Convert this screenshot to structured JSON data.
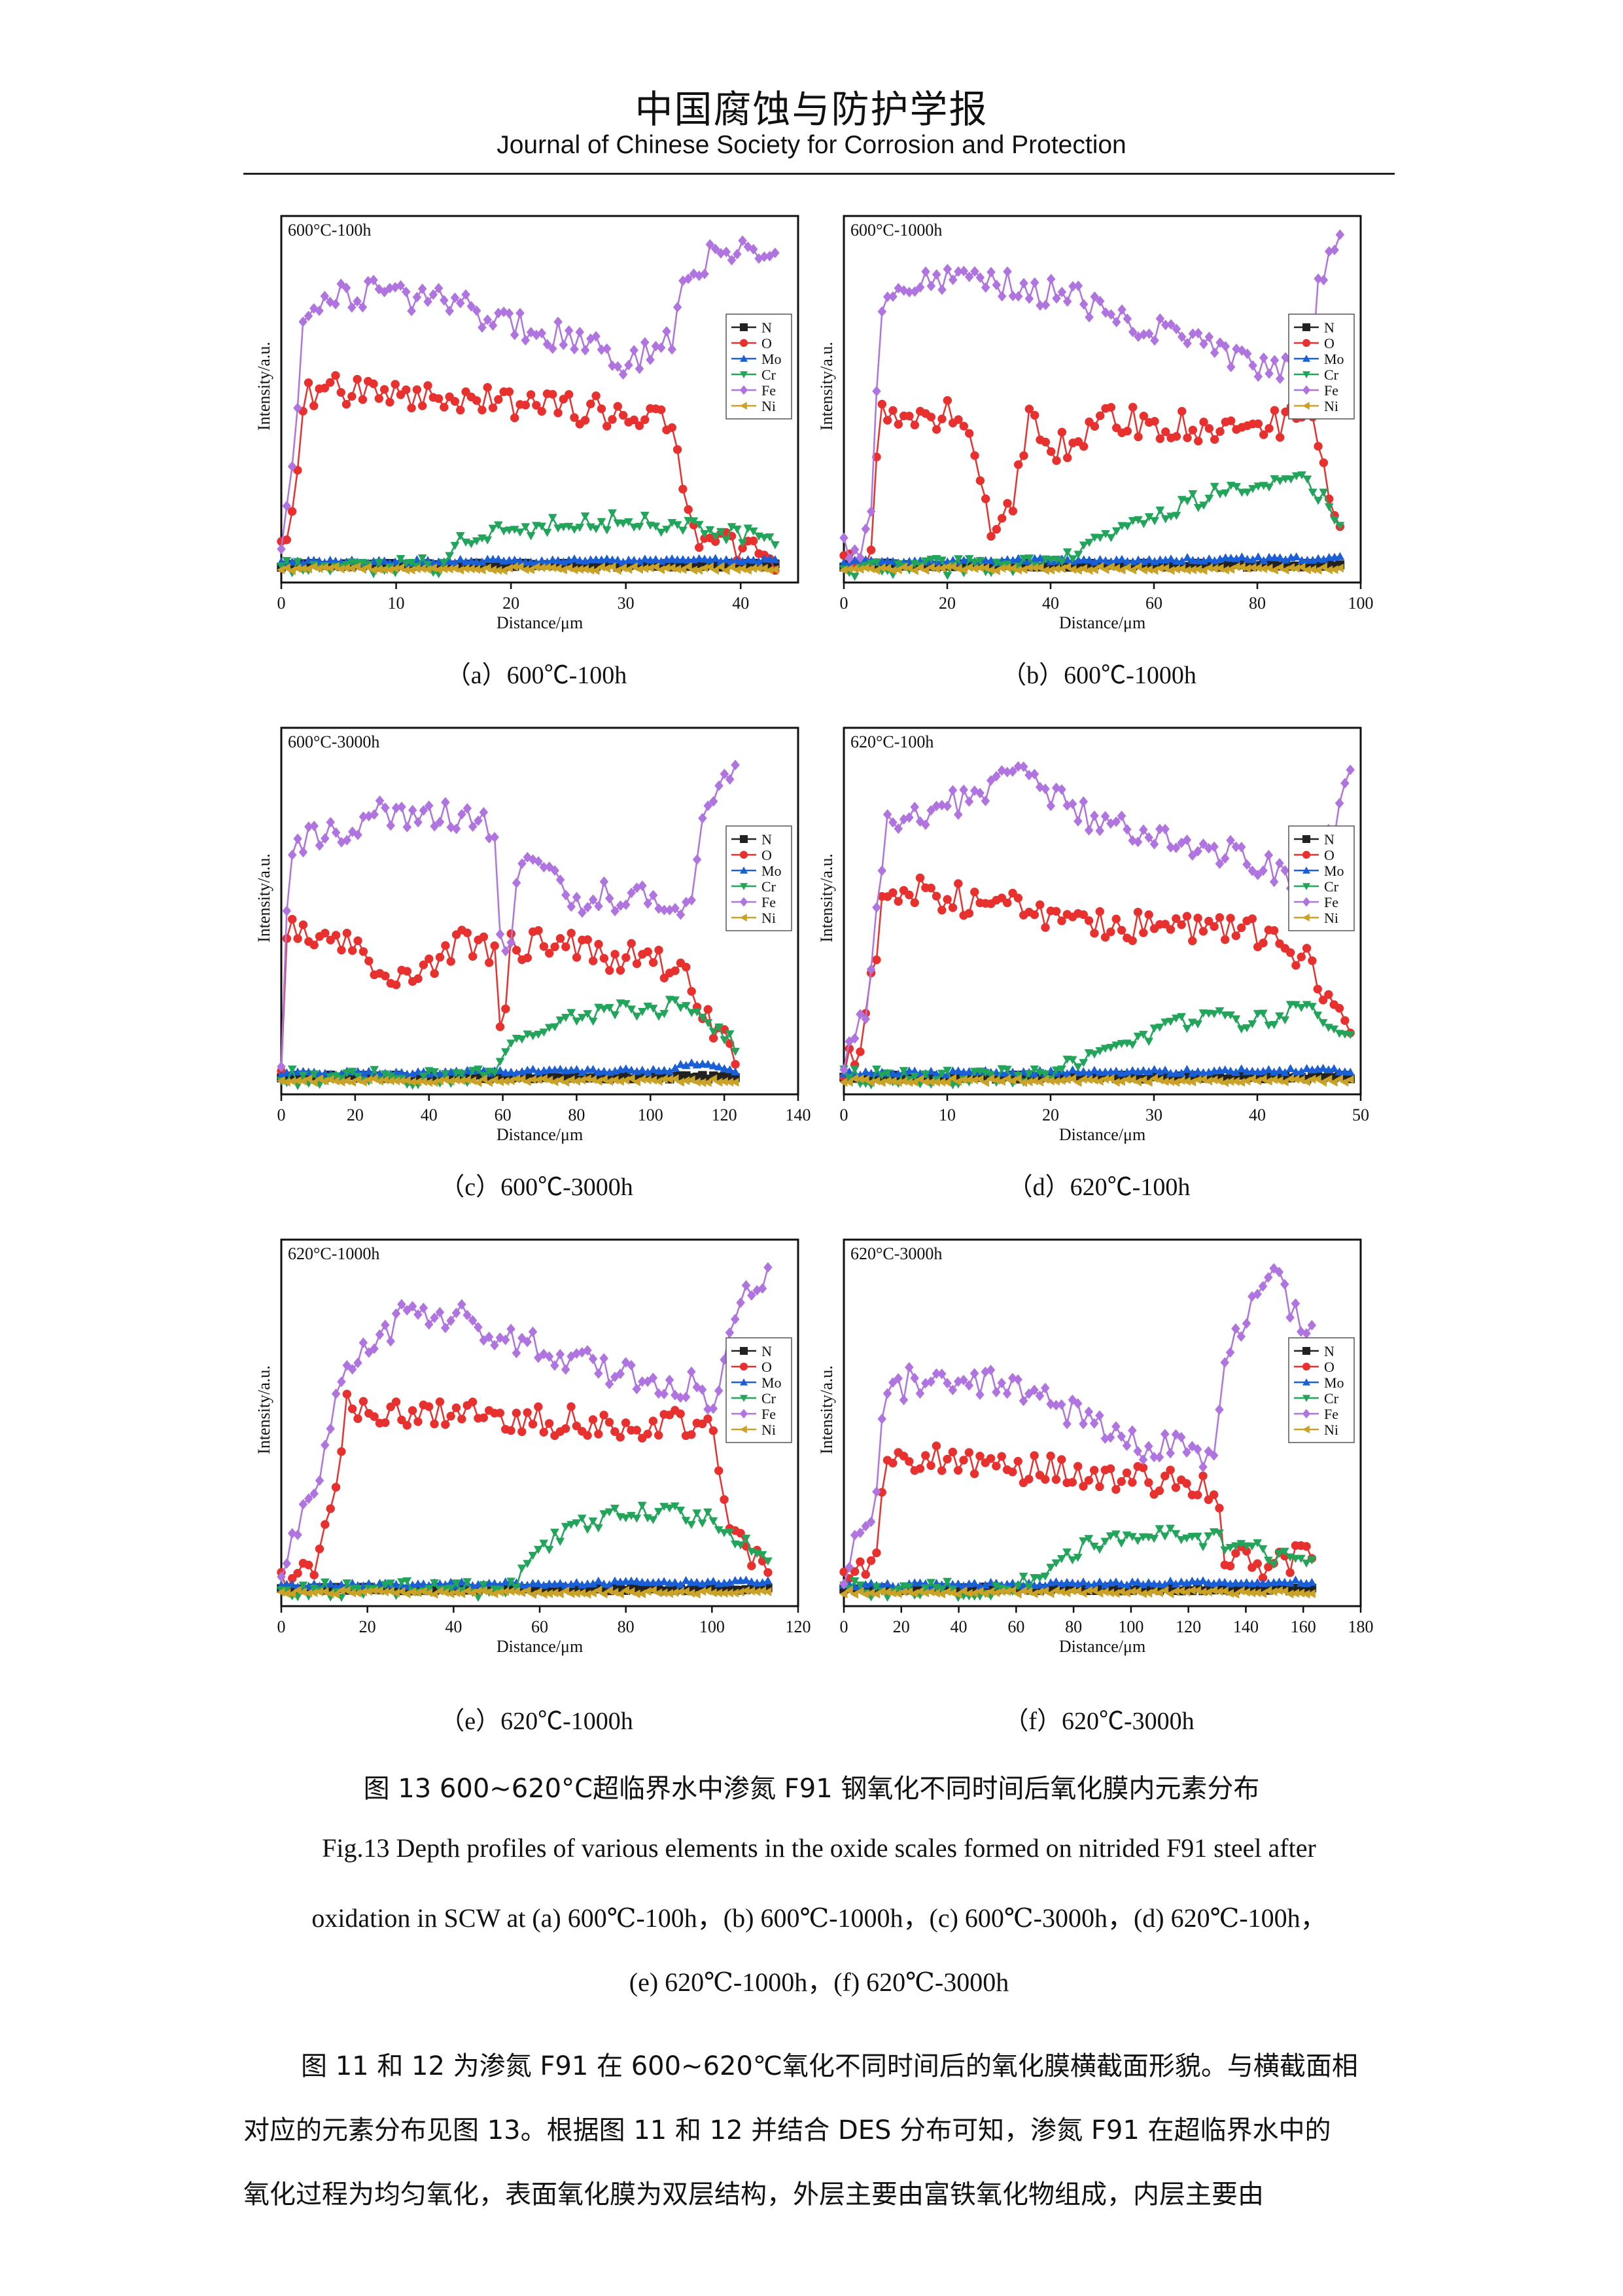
{
  "header": {
    "journal_cn": "中国腐蚀与防护学报",
    "journal_en": "Journal of Chinese Society for Corrosion and Protection"
  },
  "figure": {
    "legend": [
      "N",
      "O",
      "Mo",
      "Cr",
      "Fe",
      "Ni"
    ],
    "colors": {
      "N": "#222222",
      "O": "#e8312e",
      "Mo": "#1a5fd6",
      "Cr": "#22a55b",
      "Fe": "#b074e0",
      "Ni": "#c9a227"
    },
    "markers": {
      "N": "square",
      "O": "circle",
      "Mo": "triangle-up",
      "Cr": "triangle-down",
      "Fe": "diamond",
      "Ni": "triangle-left"
    },
    "xlabel": "Distance/μm",
    "ylabel": "Intensity/a.u.",
    "panels": [
      {
        "id": "a",
        "title": "600°C-100h",
        "caption": "（a）600℃-100h",
        "xlim": [
          0,
          45
        ],
        "xticks": [
          0,
          10,
          20,
          30,
          40
        ],
        "xend": 43
      },
      {
        "id": "b",
        "title": "600°C-1000h",
        "caption": "（b）600℃-1000h",
        "xlim": [
          0,
          100
        ],
        "xticks": [
          0,
          20,
          40,
          60,
          80,
          100
        ],
        "xend": 96
      },
      {
        "id": "c",
        "title": "600°C-3000h",
        "caption": "（c）600℃-3000h",
        "xlim": [
          0,
          140
        ],
        "xticks": [
          0,
          20,
          40,
          60,
          80,
          100,
          120,
          140
        ],
        "xend": 123
      },
      {
        "id": "d",
        "title": "620°C-100h",
        "caption": "（d）620℃-100h",
        "xlim": [
          0,
          50
        ],
        "xticks": [
          0,
          10,
          20,
          30,
          40,
          50
        ],
        "xend": 49
      },
      {
        "id": "e",
        "title": "620°C-1000h",
        "caption": "（e）620℃-1000h",
        "xlim": [
          0,
          120
        ],
        "xticks": [
          0,
          20,
          40,
          60,
          80,
          100,
          120
        ],
        "xend": 113
      },
      {
        "id": "f",
        "title": "620°C-3000h",
        "caption": "（f）620℃-3000h",
        "xlim": [
          0,
          180
        ],
        "xticks": [
          0,
          20,
          40,
          60,
          80,
          100,
          120,
          140,
          160,
          180
        ],
        "xend": 163
      }
    ]
  },
  "chart_data": [
    {
      "type": "line",
      "title": "600°C-100h",
      "xlabel": "Distance/μm",
      "ylabel": "Intensity/a.u.",
      "xlim": [
        0,
        45
      ],
      "series": [
        {
          "name": "N",
          "x": [
            0,
            43
          ],
          "y": [
            0.03,
            0.03
          ]
        },
        {
          "name": "O",
          "x": [
            0,
            1,
            2,
            4,
            10,
            20,
            30,
            34,
            35,
            36,
            43
          ],
          "y": [
            0.06,
            0.22,
            0.52,
            0.54,
            0.53,
            0.5,
            0.47,
            0.45,
            0.2,
            0.12,
            0.06
          ]
        },
        {
          "name": "Mo",
          "x": [
            0,
            43
          ],
          "y": [
            0.04,
            0.045
          ]
        },
        {
          "name": "Cr",
          "x": [
            0,
            14,
            16,
            20,
            25,
            30,
            35,
            40,
            43
          ],
          "y": [
            0.03,
            0.03,
            0.11,
            0.13,
            0.15,
            0.16,
            0.14,
            0.12,
            0.1
          ]
        },
        {
          "name": "Fe",
          "x": [
            0,
            1,
            2,
            5,
            10,
            20,
            30,
            34,
            35,
            40,
            43
          ],
          "y": [
            0.08,
            0.3,
            0.78,
            0.8,
            0.82,
            0.74,
            0.62,
            0.68,
            0.9,
            0.93,
            0.92
          ]
        },
        {
          "name": "Ni",
          "x": [
            0,
            43
          ],
          "y": [
            0.02,
            0.02
          ]
        }
      ]
    },
    {
      "type": "line",
      "title": "600°C-1000h",
      "xlabel": "Distance/μm",
      "ylabel": "Intensity/a.u.",
      "xlim": [
        0,
        100
      ],
      "series": [
        {
          "name": "N",
          "x": [
            0,
            96
          ],
          "y": [
            0.03,
            0.03
          ]
        },
        {
          "name": "O",
          "x": [
            0,
            5,
            7,
            10,
            20,
            25,
            28,
            32,
            36,
            40,
            50,
            60,
            70,
            80,
            90,
            96
          ],
          "y": [
            0.04,
            0.05,
            0.48,
            0.45,
            0.47,
            0.35,
            0.15,
            0.18,
            0.45,
            0.35,
            0.45,
            0.44,
            0.43,
            0.44,
            0.45,
            0.15
          ]
        },
        {
          "name": "Mo",
          "x": [
            0,
            96
          ],
          "y": [
            0.04,
            0.05
          ]
        },
        {
          "name": "Cr",
          "x": [
            0,
            42,
            50,
            60,
            70,
            80,
            90,
            96
          ],
          "y": [
            0.02,
            0.03,
            0.12,
            0.17,
            0.23,
            0.26,
            0.28,
            0.15
          ]
        },
        {
          "name": "Fe",
          "x": [
            0,
            5,
            7,
            15,
            25,
            40,
            60,
            80,
            90,
            92,
            96
          ],
          "y": [
            0.07,
            0.1,
            0.8,
            0.85,
            0.86,
            0.82,
            0.72,
            0.6,
            0.58,
            0.85,
            0.98
          ]
        },
        {
          "name": "Ni",
          "x": [
            0,
            96
          ],
          "y": [
            0.02,
            0.02
          ]
        }
      ]
    },
    {
      "type": "line",
      "title": "600°C-3000h",
      "xlabel": "Distance/μm",
      "ylabel": "Intensity/a.u.",
      "xlim": [
        0,
        140
      ],
      "series": [
        {
          "name": "N",
          "x": [
            0,
            123
          ],
          "y": [
            0.03,
            0.03
          ]
        },
        {
          "name": "O",
          "x": [
            0,
            2,
            5,
            20,
            30,
            40,
            50,
            58,
            60,
            62,
            70,
            90,
            110,
            115,
            123
          ],
          "y": [
            0.05,
            0.52,
            0.45,
            0.4,
            0.3,
            0.35,
            0.42,
            0.4,
            0.05,
            0.4,
            0.42,
            0.38,
            0.35,
            0.2,
            0.1
          ]
        },
        {
          "name": "Mo",
          "x": [
            0,
            105,
            110,
            123
          ],
          "y": [
            0.04,
            0.05,
            0.07,
            0.05
          ]
        },
        {
          "name": "Cr",
          "x": [
            0,
            58,
            62,
            70,
            80,
            90,
            100,
            110,
            115,
            123
          ],
          "y": [
            0.03,
            0.03,
            0.15,
            0.18,
            0.2,
            0.22,
            0.22,
            0.24,
            0.2,
            0.12
          ]
        },
        {
          "name": "Fe",
          "x": [
            0,
            2,
            10,
            30,
            50,
            58,
            60,
            65,
            80,
            100,
            110,
            115,
            123
          ],
          "y": [
            0.08,
            0.7,
            0.72,
            0.8,
            0.78,
            0.75,
            0.3,
            0.65,
            0.55,
            0.55,
            0.5,
            0.85,
            0.9
          ]
        },
        {
          "name": "Ni",
          "x": [
            0,
            123
          ],
          "y": [
            0.02,
            0.02
          ]
        }
      ]
    },
    {
      "type": "line",
      "title": "620°C-100h",
      "xlabel": "Distance/μm",
      "ylabel": "Intensity/a.u.",
      "xlim": [
        0,
        50
      ],
      "series": [
        {
          "name": "N",
          "x": [
            0,
            49
          ],
          "y": [
            0.03,
            0.03
          ]
        },
        {
          "name": "O",
          "x": [
            0,
            2,
            4,
            10,
            20,
            30,
            40,
            43,
            45,
            49
          ],
          "y": [
            0.05,
            0.15,
            0.58,
            0.55,
            0.5,
            0.46,
            0.45,
            0.42,
            0.35,
            0.15
          ]
        },
        {
          "name": "Mo",
          "x": [
            0,
            49
          ],
          "y": [
            0.04,
            0.05
          ]
        },
        {
          "name": "Cr",
          "x": [
            0,
            20,
            25,
            30,
            35,
            40,
            45,
            49
          ],
          "y": [
            0.03,
            0.03,
            0.12,
            0.16,
            0.2,
            0.19,
            0.23,
            0.15
          ]
        },
        {
          "name": "Fe",
          "x": [
            0,
            2,
            4,
            10,
            17,
            25,
            35,
            45,
            49
          ],
          "y": [
            0.08,
            0.2,
            0.75,
            0.82,
            0.9,
            0.76,
            0.7,
            0.58,
            0.88
          ]
        },
        {
          "name": "Ni",
          "x": [
            0,
            49
          ],
          "y": [
            0.02,
            0.02
          ]
        }
      ]
    },
    {
      "type": "line",
      "title": "620°C-1000h",
      "xlabel": "Distance/μm",
      "ylabel": "Intensity/a.u.",
      "xlim": [
        0,
        120
      ],
      "series": [
        {
          "name": "N",
          "x": [
            0,
            113
          ],
          "y": [
            0.03,
            0.03
          ]
        },
        {
          "name": "O",
          "x": [
            0,
            8,
            12,
            15,
            20,
            40,
            60,
            80,
            100,
            105,
            113
          ],
          "y": [
            0.05,
            0.08,
            0.3,
            0.55,
            0.55,
            0.54,
            0.52,
            0.5,
            0.52,
            0.18,
            0.1
          ]
        },
        {
          "name": "Mo",
          "x": [
            0,
            113
          ],
          "y": [
            0.04,
            0.05
          ]
        },
        {
          "name": "Cr",
          "x": [
            0,
            53,
            60,
            70,
            80,
            90,
            100,
            113
          ],
          "y": [
            0.03,
            0.03,
            0.15,
            0.22,
            0.25,
            0.25,
            0.23,
            0.12
          ]
        },
        {
          "name": "Fe",
          "x": [
            0,
            8,
            15,
            30,
            45,
            60,
            80,
            95,
            100,
            105,
            113
          ],
          "y": [
            0.08,
            0.35,
            0.65,
            0.85,
            0.8,
            0.72,
            0.65,
            0.62,
            0.55,
            0.85,
            0.92
          ]
        },
        {
          "name": "Ni",
          "x": [
            0,
            113
          ],
          "y": [
            0.02,
            0.02
          ]
        }
      ]
    },
    {
      "type": "line",
      "title": "620°C-3000h",
      "xlabel": "Distance/μm",
      "ylabel": "Intensity/a.u.",
      "xlim": [
        0,
        180
      ],
      "series": [
        {
          "name": "N",
          "x": [
            0,
            163
          ],
          "y": [
            0.03,
            0.03
          ]
        },
        {
          "name": "O",
          "x": [
            0,
            10,
            15,
            30,
            60,
            100,
            130,
            132,
            150,
            163
          ],
          "y": [
            0.05,
            0.08,
            0.42,
            0.4,
            0.38,
            0.35,
            0.33,
            0.12,
            0.1,
            0.12
          ]
        },
        {
          "name": "Mo",
          "x": [
            0,
            163
          ],
          "y": [
            0.04,
            0.05
          ]
        },
        {
          "name": "Cr",
          "x": [
            0,
            60,
            80,
            100,
            120,
            140,
            150,
            163
          ],
          "y": [
            0.03,
            0.03,
            0.14,
            0.19,
            0.18,
            0.16,
            0.12,
            0.12
          ]
        },
        {
          "name": "Fe",
          "x": [
            0,
            10,
            15,
            30,
            60,
            100,
            130,
            132,
            148,
            163
          ],
          "y": [
            0.08,
            0.25,
            0.6,
            0.65,
            0.62,
            0.45,
            0.42,
            0.7,
            0.95,
            0.75
          ]
        },
        {
          "name": "Ni",
          "x": [
            0,
            163
          ],
          "y": [
            0.02,
            0.02
          ]
        }
      ]
    }
  ],
  "caption": {
    "cn": "图 13 600~620°C超临界水中渗氮 F91 钢氧化不同时间后氧化膜内元素分布",
    "en1": "Fig.13 Depth profiles of various elements in the oxide scales formed on nitrided F91 steel after",
    "en2": "oxidation in SCW at  (a) 600℃-100h，(b) 600℃-1000h，(c) 600℃-3000h，(d) 620℃-100h，",
    "en3": "(e) 620℃-1000h，(f) 620℃-3000h"
  },
  "body": {
    "p1": "图 11 和 12 为渗氮 F91 在 600~620℃氧化不同时间后的氧化膜横截面形貌。与横截面相",
    "p2": "对应的元素分布见图 13。根据图 11 和 12 并结合 DES 分布可知，渗氮 F91 在超临界水中的",
    "p3": "氧化过程为均匀氧化，表面氧化膜为双层结构，外层主要由富铁氧化物组成，内层主要由"
  }
}
